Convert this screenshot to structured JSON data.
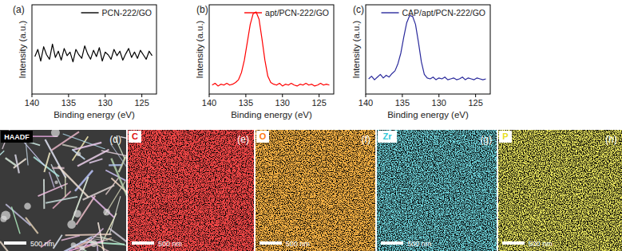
{
  "chart_data": [
    {
      "type": "line",
      "title": "(a)",
      "x_label": "Binding energy (eV)",
      "y_label": "Intensity (a.u.)",
      "xlim": [
        140,
        123
      ],
      "xticks": [
        140,
        135,
        130,
        125
      ],
      "ylim": [
        0,
        1
      ],
      "tick_labels": "x",
      "legend": "upper right",
      "x": [
        139.6,
        139.2,
        138.8,
        138.4,
        138.0,
        137.6,
        137.2,
        136.8,
        136.4,
        136.0,
        135.6,
        135.2,
        134.8,
        134.4,
        134.0,
        133.6,
        133.2,
        132.8,
        132.4,
        132.0,
        131.6,
        131.2,
        130.8,
        130.4,
        130.0,
        129.6,
        129.2,
        128.8,
        128.4,
        128.0,
        127.6,
        127.2,
        126.8,
        126.4,
        126.0,
        125.6,
        125.2,
        124.8,
        124.4,
        124.0,
        123.6
      ],
      "series": [
        {
          "name": "PCN-222/GO",
          "color": "#000000",
          "values": [
            0.42,
            0.5,
            0.37,
            0.53,
            0.44,
            0.39,
            0.56,
            0.41,
            0.48,
            0.38,
            0.51,
            0.43,
            0.47,
            0.36,
            0.5,
            0.44,
            0.4,
            0.54,
            0.45,
            0.39,
            0.49,
            0.42,
            0.52,
            0.37,
            0.47,
            0.44,
            0.39,
            0.5,
            0.43,
            0.48,
            0.38,
            0.45,
            0.51,
            0.41,
            0.47,
            0.4,
            0.49,
            0.44,
            0.39,
            0.48,
            0.43
          ]
        }
      ]
    },
    {
      "type": "line",
      "title": "(b)",
      "x_label": "Binding energy (eV)",
      "y_label": "Intensity (a.u.)",
      "xlim": [
        140,
        123
      ],
      "xticks": [
        140,
        135,
        130,
        125
      ],
      "ylim": [
        0,
        1
      ],
      "tick_labels": "x",
      "legend": "upper right",
      "x": [
        139.6,
        139.2,
        138.8,
        138.4,
        138.0,
        137.6,
        137.2,
        136.8,
        136.4,
        136.0,
        135.6,
        135.2,
        134.8,
        134.4,
        134.0,
        133.6,
        133.2,
        132.8,
        132.4,
        132.0,
        131.6,
        131.2,
        130.8,
        130.4,
        130.0,
        129.6,
        129.2,
        128.8,
        128.4,
        128.0,
        127.6,
        127.2,
        126.8,
        126.4,
        126.0,
        125.6,
        125.2,
        124.8,
        124.4,
        124.0,
        123.6
      ],
      "series": [
        {
          "name": "apt/PCN-222/GO",
          "color": "#ff0000",
          "values": [
            0.1,
            0.12,
            0.09,
            0.11,
            0.1,
            0.12,
            0.1,
            0.11,
            0.13,
            0.16,
            0.24,
            0.38,
            0.58,
            0.78,
            0.9,
            0.92,
            0.84,
            0.62,
            0.38,
            0.2,
            0.13,
            0.11,
            0.1,
            0.12,
            0.09,
            0.11,
            0.1,
            0.12,
            0.1,
            0.09,
            0.11,
            0.1,
            0.12,
            0.1,
            0.11,
            0.09,
            0.1,
            0.12,
            0.1,
            0.11,
            0.1
          ]
        }
      ]
    },
    {
      "type": "line",
      "title": "(c)",
      "x_label": "Binding energy (eV)",
      "y_label": "Intensity (a.u.)",
      "xlim": [
        140,
        123
      ],
      "xticks": [
        140,
        135,
        130,
        125
      ],
      "ylim": [
        0,
        1
      ],
      "tick_labels": "x",
      "legend": "upper right",
      "x": [
        139.6,
        139.2,
        138.8,
        138.4,
        138.0,
        137.6,
        137.2,
        136.8,
        136.4,
        136.0,
        135.6,
        135.2,
        134.8,
        134.4,
        134.0,
        133.6,
        133.2,
        132.8,
        132.4,
        132.0,
        131.6,
        131.2,
        130.8,
        130.4,
        130.0,
        129.6,
        129.2,
        128.8,
        128.4,
        128.0,
        127.6,
        127.2,
        126.8,
        126.4,
        126.0,
        125.6,
        125.2,
        124.8,
        124.4,
        124.0,
        123.6
      ],
      "series": [
        {
          "name": "CAP/apt/PCN-222/GO",
          "color": "#2a2a9c",
          "values": [
            0.17,
            0.2,
            0.16,
            0.19,
            0.22,
            0.18,
            0.21,
            0.19,
            0.23,
            0.26,
            0.34,
            0.46,
            0.64,
            0.8,
            0.88,
            0.87,
            0.78,
            0.58,
            0.36,
            0.22,
            0.18,
            0.17,
            0.19,
            0.16,
            0.18,
            0.17,
            0.19,
            0.16,
            0.17,
            0.18,
            0.16,
            0.17,
            0.19,
            0.16,
            0.18,
            0.17,
            0.16,
            0.18,
            0.17,
            0.16,
            0.17
          ]
        }
      ]
    }
  ],
  "panels": [
    {
      "label": "(d)",
      "title": "HAADF",
      "scale_bar": "500 nm",
      "color": "#ffffff"
    },
    {
      "label": "(e)",
      "title": "C",
      "scale_bar": "500 nm",
      "color": "#e01010"
    },
    {
      "label": "(f)",
      "title": "O",
      "scale_bar": "500 nm",
      "color": "#ff7a10"
    },
    {
      "label": "(g)",
      "title": "Zr",
      "scale_bar": "500 nm",
      "color": "#30c8d8"
    },
    {
      "label": "(h)",
      "title": "P",
      "scale_bar": "500 nm",
      "color": "#e8e020"
    }
  ]
}
